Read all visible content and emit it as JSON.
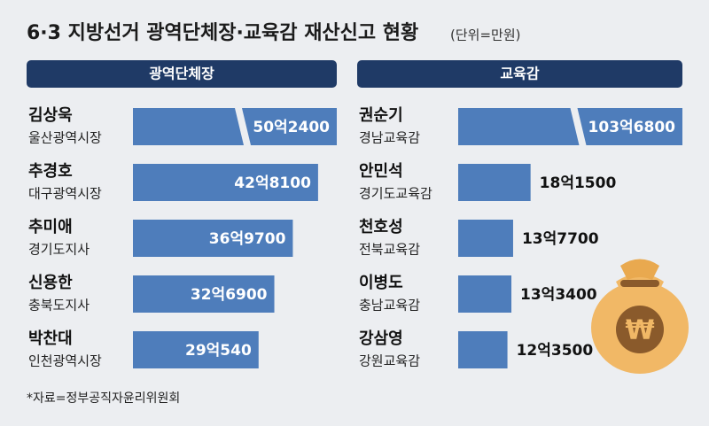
{
  "title": "6·3 지방선거 광역단체장·교육감 재산신고 현황",
  "unit": "(단위=만원)",
  "source": "*자료=정부공직자윤리위원회",
  "chart_data": [
    {
      "type": "bar",
      "title": "광역단체장",
      "color": "#4e7dbb",
      "categories": [
        "김상욱",
        "추경호",
        "추미애",
        "신용한",
        "박찬대"
      ],
      "roles": [
        "울산광역시장",
        "대구광역시장",
        "경기도지사",
        "충북도지사",
        "인천광역시장"
      ],
      "values": [
        502400,
        428100,
        369700,
        326900,
        290540
      ],
      "value_labels": [
        "50억2400",
        "42억8100",
        "36억9700",
        "32억6900",
        "29억540"
      ]
    },
    {
      "type": "bar",
      "title": "교육감",
      "color": "#4e7dbb",
      "categories": [
        "권순기",
        "안민석",
        "천호성",
        "이병도",
        "강삼영"
      ],
      "roles": [
        "경남교육감",
        "경기도교육감",
        "전북교육감",
        "충남교육감",
        "강원교육감"
      ],
      "values": [
        1036800,
        181500,
        137700,
        133400,
        123500
      ],
      "value_labels": [
        "103억6800",
        "18억1500",
        "13억7700",
        "13억3400",
        "12억3500"
      ]
    }
  ]
}
